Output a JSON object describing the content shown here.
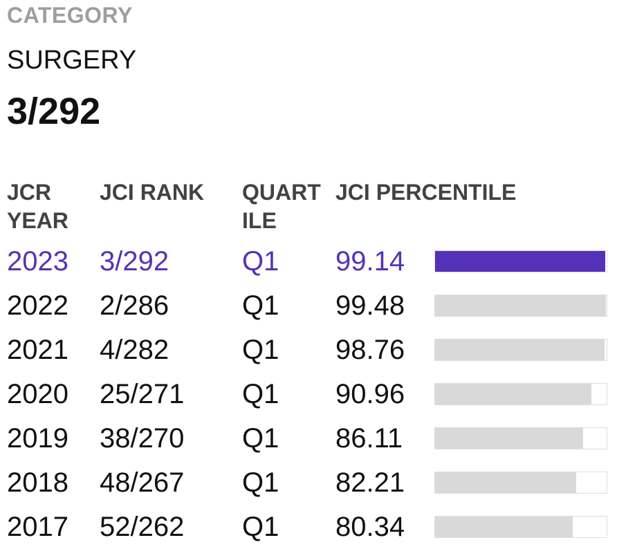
{
  "category": {
    "label": "CATEGORY",
    "name": "SURGERY",
    "rank": "3/292"
  },
  "table": {
    "headers": {
      "year": "JCR YEAR",
      "rank": "JCI RANK",
      "quartile": "QUARTILE",
      "percentile": "JCI PERCENTILE"
    },
    "rows": [
      {
        "year": "2023",
        "rank": "3/292",
        "quartile": "Q1",
        "percentile": "99.14",
        "current": true
      },
      {
        "year": "2022",
        "rank": "2/286",
        "quartile": "Q1",
        "percentile": "99.48",
        "current": false
      },
      {
        "year": "2021",
        "rank": "4/282",
        "quartile": "Q1",
        "percentile": "98.76",
        "current": false
      },
      {
        "year": "2020",
        "rank": "25/271",
        "quartile": "Q1",
        "percentile": "90.96",
        "current": false
      },
      {
        "year": "2019",
        "rank": "38/270",
        "quartile": "Q1",
        "percentile": "86.11",
        "current": false
      },
      {
        "year": "2018",
        "rank": "48/267",
        "quartile": "Q1",
        "percentile": "82.21",
        "current": false
      },
      {
        "year": "2017",
        "rank": "52/262",
        "quartile": "Q1",
        "percentile": "80.34",
        "current": false
      }
    ]
  },
  "colors": {
    "accent": "#5432b8",
    "bar_fill": "#d9d9d9",
    "label_gray": "#9e9e9e"
  }
}
